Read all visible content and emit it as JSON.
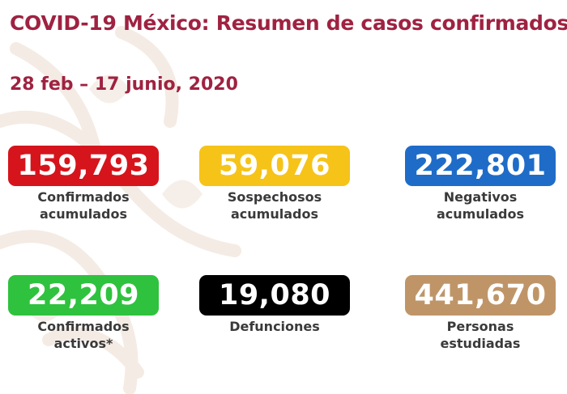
{
  "header": {
    "title": "COVID-19 México: Resumen de casos confirmados",
    "date_range": "28 feb – 17 junio, 2020"
  },
  "stats": [
    {
      "value": "159,793",
      "label": "Confirmados\nacumulados",
      "color": "#d6141c"
    },
    {
      "value": "59,076",
      "label": "Sospechosos\nacumulados",
      "color": "#f6c319"
    },
    {
      "value": "222,801",
      "label": "Negativos\nacumulados",
      "color": "#1f6cc8"
    },
    {
      "value": "22,209",
      "label": "Confirmados\nactivos*",
      "color": "#2fc23e"
    },
    {
      "value": "19,080",
      "label": "Defunciones",
      "color": "#000000"
    },
    {
      "value": "441,670",
      "label": "Personas\nestudiadas",
      "color": "#bf9568"
    }
  ],
  "colors": {
    "title": "#9f2241",
    "label_text": "#3a3a3a",
    "background_ornament": "#f4ebe4"
  }
}
